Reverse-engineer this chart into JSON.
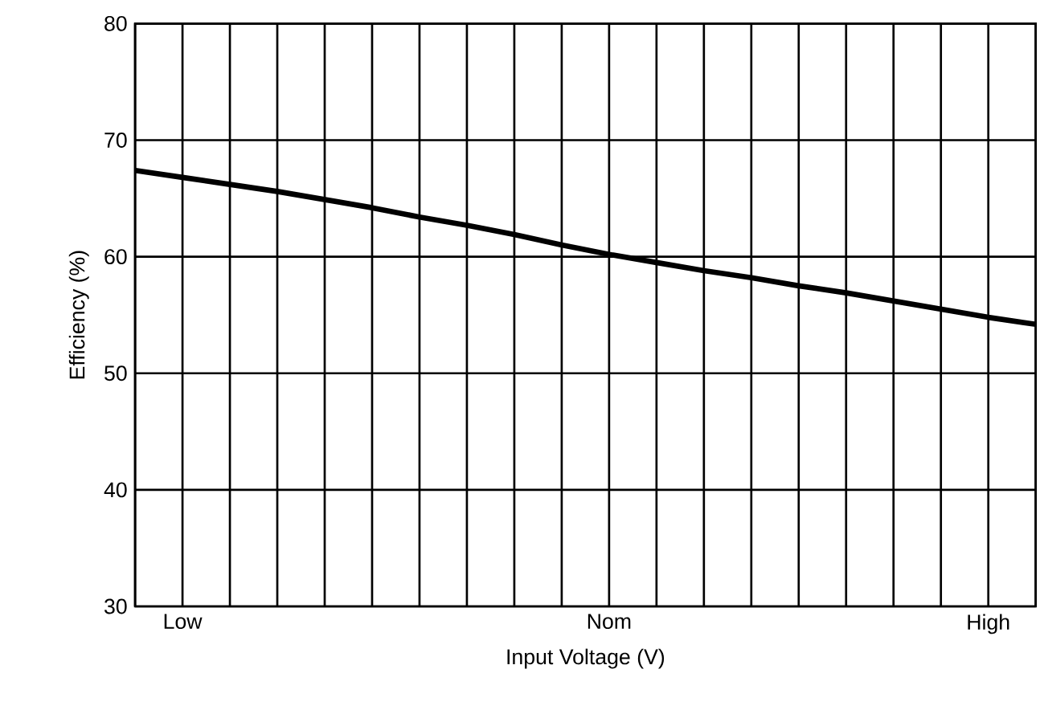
{
  "chart_data": {
    "type": "line",
    "xlabel": "Input Voltage (V)",
    "ylabel": "Efficiency (%)",
    "categories": [
      null,
      "Low",
      null,
      null,
      null,
      null,
      null,
      null,
      null,
      null,
      "Nom",
      null,
      null,
      null,
      null,
      null,
      null,
      null,
      "High",
      null
    ],
    "series": [
      {
        "color": "#000000",
        "values": [
          67.4,
          66.8,
          66.2,
          65.6,
          64.9,
          64.2,
          63.4,
          62.7,
          61.9,
          61.0,
          60.2,
          59.5,
          58.8,
          58.2,
          57.5,
          56.9,
          56.2,
          55.5,
          54.8,
          54.2
        ]
      }
    ],
    "ylim": [
      30,
      80
    ],
    "yticks": [
      30,
      40,
      50,
      60,
      70,
      80
    ],
    "grid": true,
    "marker": "none",
    "line_style": "solid"
  }
}
